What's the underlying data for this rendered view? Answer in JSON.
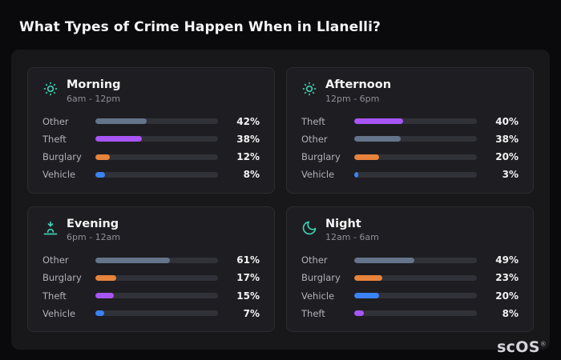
{
  "title": "What Types of Crime Happen When in Llanelli?",
  "logo": {
    "text": "scOS",
    "mark": "®"
  },
  "colors": {
    "background": "#0a0a0c",
    "panel": "#18181b",
    "card": "#1e1e22",
    "track": "#313138",
    "icon_accent": "#3ecfb2"
  },
  "category_colors": {
    "Other": "#64748b",
    "Theft": "#a855f7",
    "Burglary": "#e8833c",
    "Vehicle": "#3b82f6"
  },
  "cards": [
    {
      "id": "morning",
      "icon": "sun-icon",
      "title": "Morning",
      "subtitle": "6am - 12pm",
      "rows": [
        {
          "label": "Other",
          "value": 42,
          "percent": "42%"
        },
        {
          "label": "Theft",
          "value": 38,
          "percent": "38%"
        },
        {
          "label": "Burglary",
          "value": 12,
          "percent": "12%"
        },
        {
          "label": "Vehicle",
          "value": 8,
          "percent": "8%"
        }
      ]
    },
    {
      "id": "afternoon",
      "icon": "sun-icon",
      "title": "Afternoon",
      "subtitle": "12pm - 6pm",
      "rows": [
        {
          "label": "Theft",
          "value": 40,
          "percent": "40%"
        },
        {
          "label": "Other",
          "value": 38,
          "percent": "38%"
        },
        {
          "label": "Burglary",
          "value": 20,
          "percent": "20%"
        },
        {
          "label": "Vehicle",
          "value": 3,
          "percent": "3%"
        }
      ]
    },
    {
      "id": "evening",
      "icon": "sunset-icon",
      "title": "Evening",
      "subtitle": "6pm - 12am",
      "rows": [
        {
          "label": "Other",
          "value": 61,
          "percent": "61%"
        },
        {
          "label": "Burglary",
          "value": 17,
          "percent": "17%"
        },
        {
          "label": "Theft",
          "value": 15,
          "percent": "15%"
        },
        {
          "label": "Vehicle",
          "value": 7,
          "percent": "7%"
        }
      ]
    },
    {
      "id": "night",
      "icon": "moon-icon",
      "title": "Night",
      "subtitle": "12am - 6am",
      "rows": [
        {
          "label": "Other",
          "value": 49,
          "percent": "49%"
        },
        {
          "label": "Burglary",
          "value": 23,
          "percent": "23%"
        },
        {
          "label": "Vehicle",
          "value": 20,
          "percent": "20%"
        },
        {
          "label": "Theft",
          "value": 8,
          "percent": "8%"
        }
      ]
    }
  ],
  "chart_data": [
    {
      "type": "bar",
      "orientation": "horizontal",
      "title": "Morning",
      "subtitle": "6am - 12pm",
      "categories": [
        "Other",
        "Theft",
        "Burglary",
        "Vehicle"
      ],
      "values": [
        42,
        38,
        12,
        8
      ],
      "unit": "%",
      "xlim": [
        0,
        100
      ],
      "grid": false,
      "legend": false
    },
    {
      "type": "bar",
      "orientation": "horizontal",
      "title": "Afternoon",
      "subtitle": "12pm - 6pm",
      "categories": [
        "Theft",
        "Other",
        "Burglary",
        "Vehicle"
      ],
      "values": [
        40,
        38,
        20,
        3
      ],
      "unit": "%",
      "xlim": [
        0,
        100
      ],
      "grid": false,
      "legend": false
    },
    {
      "type": "bar",
      "orientation": "horizontal",
      "title": "Evening",
      "subtitle": "6pm - 12am",
      "categories": [
        "Other",
        "Burglary",
        "Theft",
        "Vehicle"
      ],
      "values": [
        61,
        17,
        15,
        7
      ],
      "unit": "%",
      "xlim": [
        0,
        100
      ],
      "grid": false,
      "legend": false
    },
    {
      "type": "bar",
      "orientation": "horizontal",
      "title": "Night",
      "subtitle": "12am - 6am",
      "categories": [
        "Other",
        "Burglary",
        "Vehicle",
        "Theft"
      ],
      "values": [
        49,
        23,
        20,
        8
      ],
      "unit": "%",
      "xlim": [
        0,
        100
      ],
      "grid": false,
      "legend": false
    }
  ]
}
